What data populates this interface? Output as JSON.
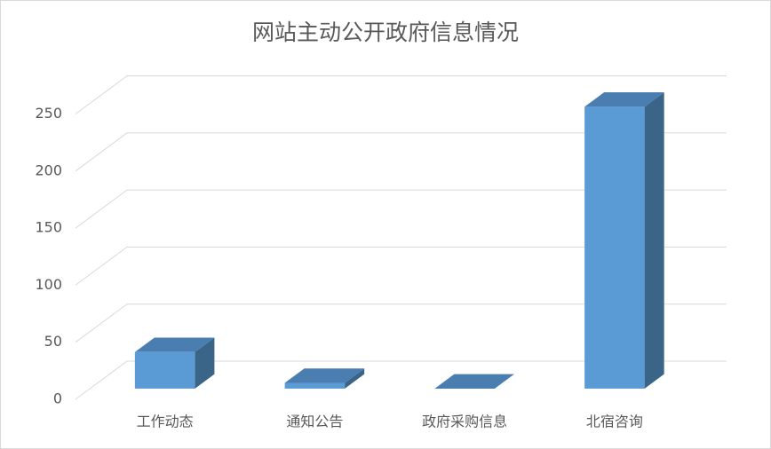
{
  "chart_data": {
    "type": "bar3d",
    "title": "网站主动公开政府信息情况",
    "categories": [
      "工作动态",
      "通知公告",
      "政府采购信息",
      "北宿咨询"
    ],
    "values": [
      32,
      5,
      0,
      247
    ],
    "color": "#5b9bd5",
    "ylim": [
      0,
      250
    ],
    "yticks": [
      0,
      50,
      100,
      150,
      200,
      250
    ],
    "grid": true
  }
}
